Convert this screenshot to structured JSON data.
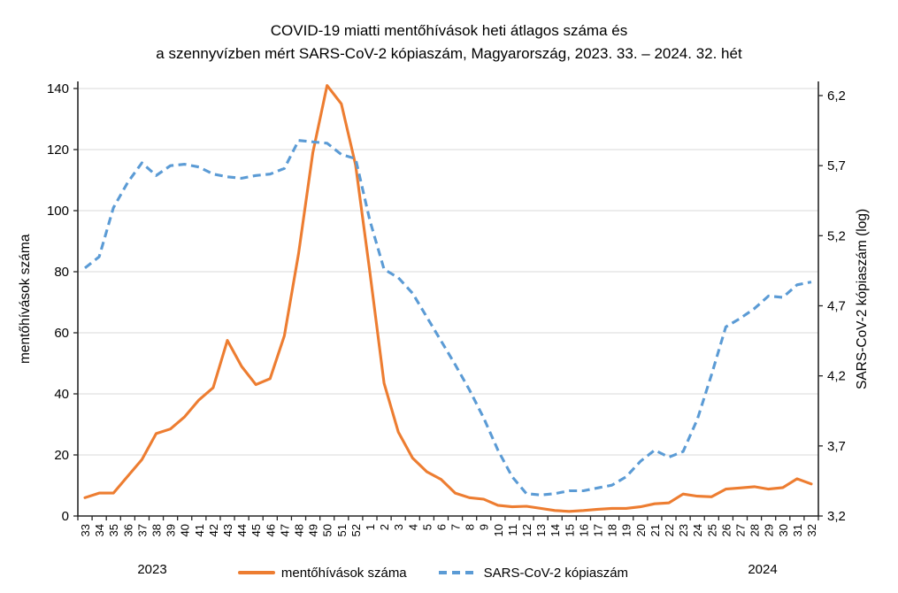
{
  "title": {
    "line1": "COVID-19 miatti mentőhívások heti átlagos száma és",
    "line2": "a szennyvízben mért SARS-CoV-2 kópiaszám, Magyarország, 2023. 33. – 2024. 32. hét"
  },
  "left_axis": {
    "title": "mentőhívások száma",
    "tick_labels": [
      "0",
      "20",
      "40",
      "60",
      "80",
      "100",
      "120",
      "140"
    ],
    "tick_values": [
      0,
      20,
      40,
      60,
      80,
      100,
      120,
      140
    ],
    "min": 0,
    "max": 140
  },
  "right_axis": {
    "title": "SARS-CoV-2 kópiaszám (log)",
    "tick_labels": [
      "3,2",
      "3,7",
      "4,2",
      "4,7",
      "5,2",
      "5,7",
      "6,2"
    ],
    "tick_values": [
      3.2,
      3.7,
      4.2,
      4.7,
      5.2,
      5.7,
      6.2
    ],
    "min": 3.2,
    "max": 6.2
  },
  "x_axis": {
    "year_left": "2023",
    "year_right": "2024"
  },
  "legend": {
    "items": [
      {
        "label": "mentőhívások száma",
        "color": "#ED7D31",
        "style": "solid"
      },
      {
        "label": "SARS-CoV-2 kópiaszám",
        "color": "#5B9BD5",
        "style": "dashed"
      }
    ]
  },
  "colors": {
    "ambulance": "#ED7D31",
    "sars": "#5B9BD5",
    "gridline": "#D9D9D9",
    "axis": "#262626"
  },
  "chart_data": {
    "type": "line",
    "title": "COVID-19 miatti mentőhívások heti átlagos száma és a szennyvízben mért SARS-CoV-2 kópiaszám, Magyarország, 2023. 33. – 2024. 32. hét",
    "categories": [
      "33",
      "34",
      "35",
      "36",
      "37",
      "38",
      "39",
      "40",
      "41",
      "42",
      "43",
      "44",
      "45",
      "46",
      "47",
      "48",
      "49",
      "50",
      "51",
      "52",
      "1",
      "2",
      "3",
      "4",
      "5",
      "6",
      "7",
      "8",
      "9",
      "10",
      "11",
      "12",
      "13",
      "14",
      "15",
      "16",
      "17",
      "18",
      "19",
      "20",
      "21",
      "22",
      "23",
      "24",
      "25",
      "26",
      "27",
      "28",
      "29",
      "30",
      "31",
      "32"
    ],
    "series": [
      {
        "name": "mentőhívások száma",
        "axis": "left",
        "color": "#ED7D31",
        "style": "solid",
        "values": [
          6,
          7.5,
          7.5,
          13,
          18.5,
          27,
          28.5,
          32.5,
          38,
          42,
          57.5,
          49,
          43,
          45,
          59,
          86,
          119,
          141,
          135,
          115,
          80,
          43.5,
          27.5,
          19,
          14.5,
          12,
          7.5,
          6,
          5.5,
          3.5,
          3,
          3.2,
          2.5,
          1.8,
          1.5,
          1.8,
          2.2,
          2.5,
          2.5,
          3,
          4,
          4.3,
          7.2,
          6.5,
          6.3,
          8.8,
          9.2,
          9.6,
          8.8,
          9.3,
          12.2,
          10.5
        ]
      },
      {
        "name": "SARS-CoV-2 kópiaszám",
        "axis": "right",
        "color": "#5B9BD5",
        "style": "dashed",
        "values": [
          4.97,
          5.05,
          5.4,
          5.58,
          5.72,
          5.63,
          5.7,
          5.71,
          5.69,
          5.64,
          5.62,
          5.61,
          5.63,
          5.64,
          5.68,
          5.88,
          5.87,
          5.86,
          5.78,
          5.75,
          5.31,
          4.96,
          4.9,
          4.79,
          4.62,
          4.45,
          4.28,
          4.1,
          3.9,
          3.67,
          3.48,
          3.36,
          3.35,
          3.36,
          3.38,
          3.38,
          3.4,
          3.42,
          3.48,
          3.59,
          3.67,
          3.62,
          3.66,
          3.89,
          4.21,
          4.55,
          4.61,
          4.68,
          4.77,
          4.76,
          4.85,
          4.87
        ]
      }
    ],
    "left_ylim": [
      0,
      140
    ],
    "right_ylim": [
      3.2,
      6.2
    ],
    "grid": true,
    "legend_position": "bottom",
    "x_year_groups": [
      {
        "label": "2023",
        "weeks": 20
      },
      {
        "label": "2024",
        "weeks": 32
      }
    ]
  }
}
